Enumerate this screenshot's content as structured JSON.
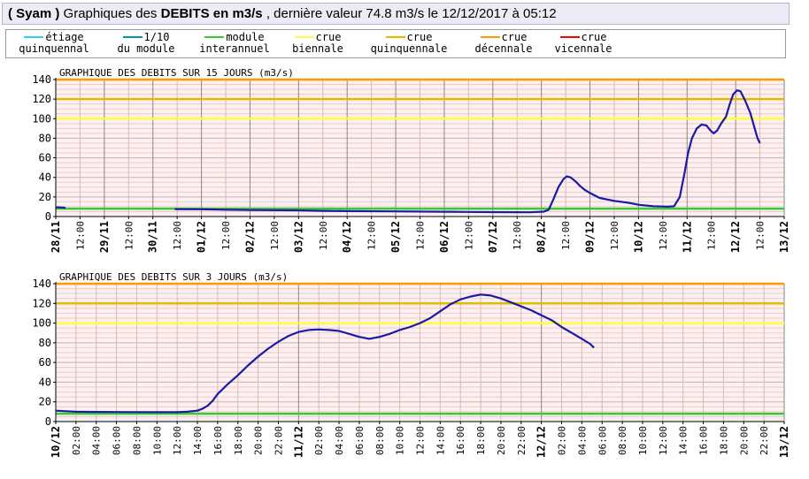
{
  "header": {
    "station": "( Syam )",
    "pre": " Graphiques des ",
    "strong": "DEBITS en m3/s",
    "post": " , dernière valeur 74.8 m3/s le 12/12/2017 à 05:12"
  },
  "legend": [
    {
      "line1": "étiage",
      "line2": "quinquennal",
      "color": "#33ccff"
    },
    {
      "line1": "1/10",
      "line2": "du module",
      "color": "#009999"
    },
    {
      "line1": "module",
      "line2": "interannuel",
      "color": "#33cc33"
    },
    {
      "line1": "crue",
      "line2": "biennale",
      "color": "#ffff33"
    },
    {
      "line1": "crue",
      "line2": "quinquennale",
      "color": "#e6b800"
    },
    {
      "line1": "crue",
      "line2": "décennale",
      "color": "#ff9900"
    },
    {
      "line1": "crue",
      "line2": "vicennale",
      "color": "#ff0000"
    }
  ],
  "chart_data": [
    {
      "type": "line",
      "title": "GRAPHIQUE DES DEBITS SUR 15 JOURS (m3/s)",
      "ylim": [
        0,
        140
      ],
      "yticks": [
        0,
        20,
        40,
        60,
        80,
        100,
        120,
        140
      ],
      "xlim": [
        0,
        15
      ],
      "xticks": [
        {
          "x": 0,
          "label": "28/11",
          "major": true
        },
        {
          "x": 0.5,
          "label": "12:00",
          "major": false
        },
        {
          "x": 1,
          "label": "29/11",
          "major": true
        },
        {
          "x": 1.5,
          "label": "12:00",
          "major": false
        },
        {
          "x": 2,
          "label": "30/11",
          "major": true
        },
        {
          "x": 2.5,
          "label": "12:00",
          "major": false
        },
        {
          "x": 3,
          "label": "01/12",
          "major": true
        },
        {
          "x": 3.5,
          "label": "12:00",
          "major": false
        },
        {
          "x": 4,
          "label": "02/12",
          "major": true
        },
        {
          "x": 4.5,
          "label": "12:00",
          "major": false
        },
        {
          "x": 5,
          "label": "03/12",
          "major": true
        },
        {
          "x": 5.5,
          "label": "12:00",
          "major": false
        },
        {
          "x": 6,
          "label": "04/12",
          "major": true
        },
        {
          "x": 6.5,
          "label": "12:00",
          "major": false
        },
        {
          "x": 7,
          "label": "05/12",
          "major": true
        },
        {
          "x": 7.5,
          "label": "12:00",
          "major": false
        },
        {
          "x": 8,
          "label": "06/12",
          "major": true
        },
        {
          "x": 8.5,
          "label": "12:00",
          "major": false
        },
        {
          "x": 9,
          "label": "07/12",
          "major": true
        },
        {
          "x": 9.5,
          "label": "12:00",
          "major": false
        },
        {
          "x": 10,
          "label": "08/12",
          "major": true
        },
        {
          "x": 10.5,
          "label": "12:00",
          "major": false
        },
        {
          "x": 11,
          "label": "09/12",
          "major": true
        },
        {
          "x": 11.5,
          "label": "12:00",
          "major": false
        },
        {
          "x": 12,
          "label": "10/12",
          "major": true
        },
        {
          "x": 12.5,
          "label": "12:00",
          "major": false
        },
        {
          "x": 13,
          "label": "11/12",
          "major": true
        },
        {
          "x": 13.5,
          "label": "12:00",
          "major": false
        },
        {
          "x": 14,
          "label": "12/12",
          "major": true
        },
        {
          "x": 14.5,
          "label": "12:00",
          "major": false
        },
        {
          "x": 15,
          "label": "13/12",
          "major": true
        }
      ],
      "thresholds": [
        {
          "name": "module interannuel",
          "value": 8,
          "color": "#33cc33"
        },
        {
          "name": "crue biennale",
          "value": 100,
          "color": "#ffff33"
        },
        {
          "name": "crue quinquennale",
          "value": 120,
          "color": "#e6b800"
        },
        {
          "name": "crue décennale",
          "value": 140,
          "color": "#ff9900"
        }
      ],
      "series": [
        {
          "color": "#1a1aa6",
          "segments": [
            [
              [
                0,
                9.5
              ],
              [
                0.15,
                9.2
              ],
              [
                0.2,
                8.8
              ]
            ],
            [
              [
                2.45,
                7.5
              ],
              [
                3,
                7.4
              ],
              [
                3.5,
                7
              ],
              [
                4,
                6.6
              ],
              [
                5,
                6.3
              ],
              [
                5.5,
                5.8
              ],
              [
                6,
                5.5
              ],
              [
                7,
                5.2
              ],
              [
                8,
                4.9
              ],
              [
                8.5,
                4.7
              ],
              [
                9,
                4.5
              ],
              [
                9.5,
                4.4
              ],
              [
                9.75,
                4.3
              ],
              [
                10.05,
                5
              ],
              [
                10.15,
                7
              ],
              [
                10.25,
                18
              ],
              [
                10.35,
                30
              ],
              [
                10.45,
                38
              ],
              [
                10.52,
                41
              ],
              [
                10.6,
                40
              ],
              [
                10.7,
                36
              ],
              [
                10.8,
                31
              ],
              [
                10.9,
                27
              ],
              [
                11,
                24
              ],
              [
                11.2,
                19
              ],
              [
                11.5,
                16
              ],
              [
                11.8,
                14
              ],
              [
                12,
                12
              ],
              [
                12.3,
                10.5
              ],
              [
                12.6,
                10
              ],
              [
                12.73,
                10.5
              ],
              [
                12.85,
                20
              ],
              [
                12.95,
                45
              ],
              [
                13.02,
                65
              ],
              [
                13.1,
                80
              ],
              [
                13.2,
                90
              ],
              [
                13.3,
                94
              ],
              [
                13.4,
                93
              ],
              [
                13.48,
                88
              ],
              [
                13.55,
                85
              ],
              [
                13.62,
                88
              ],
              [
                13.7,
                95
              ],
              [
                13.8,
                102
              ],
              [
                13.88,
                115
              ],
              [
                13.95,
                125
              ],
              [
                14.03,
                129
              ],
              [
                14.1,
                128
              ],
              [
                14.2,
                118
              ],
              [
                14.3,
                106
              ],
              [
                14.38,
                92
              ],
              [
                14.45,
                80
              ],
              [
                14.5,
                75
              ]
            ]
          ]
        }
      ]
    },
    {
      "type": "line",
      "title": "GRAPHIQUE DES DEBITS SUR 3 JOURS (m3/s)",
      "ylim": [
        0,
        140
      ],
      "yticks": [
        0,
        20,
        40,
        60,
        80,
        100,
        120,
        140
      ],
      "xlim": [
        0,
        72
      ],
      "xticks": [
        {
          "x": 0,
          "label": "10/12",
          "major": true
        },
        {
          "x": 2,
          "label": "02:00",
          "major": false
        },
        {
          "x": 4,
          "label": "04:00",
          "major": false
        },
        {
          "x": 6,
          "label": "06:00",
          "major": false
        },
        {
          "x": 8,
          "label": "08:00",
          "major": false
        },
        {
          "x": 10,
          "label": "10:00",
          "major": false
        },
        {
          "x": 12,
          "label": "12:00",
          "major": false
        },
        {
          "x": 14,
          "label": "14:00",
          "major": false
        },
        {
          "x": 16,
          "label": "16:00",
          "major": false
        },
        {
          "x": 18,
          "label": "18:00",
          "major": false
        },
        {
          "x": 20,
          "label": "20:00",
          "major": false
        },
        {
          "x": 22,
          "label": "22:00",
          "major": false
        },
        {
          "x": 24,
          "label": "11/12",
          "major": true
        },
        {
          "x": 26,
          "label": "02:00",
          "major": false
        },
        {
          "x": 28,
          "label": "04:00",
          "major": false
        },
        {
          "x": 30,
          "label": "06:00",
          "major": false
        },
        {
          "x": 32,
          "label": "08:00",
          "major": false
        },
        {
          "x": 34,
          "label": "10:00",
          "major": false
        },
        {
          "x": 36,
          "label": "12:00",
          "major": false
        },
        {
          "x": 38,
          "label": "14:00",
          "major": false
        },
        {
          "x": 40,
          "label": "16:00",
          "major": false
        },
        {
          "x": 42,
          "label": "18:00",
          "major": false
        },
        {
          "x": 44,
          "label": "20:00",
          "major": false
        },
        {
          "x": 46,
          "label": "22:00",
          "major": false
        },
        {
          "x": 48,
          "label": "12/12",
          "major": true
        },
        {
          "x": 50,
          "label": "02:00",
          "major": false
        },
        {
          "x": 52,
          "label": "04:00",
          "major": false
        },
        {
          "x": 54,
          "label": "06:00",
          "major": false
        },
        {
          "x": 56,
          "label": "08:00",
          "major": false
        },
        {
          "x": 58,
          "label": "10:00",
          "major": false
        },
        {
          "x": 60,
          "label": "12:00",
          "major": false
        },
        {
          "x": 62,
          "label": "14:00",
          "major": false
        },
        {
          "x": 64,
          "label": "16:00",
          "major": false
        },
        {
          "x": 66,
          "label": "18:00",
          "major": false
        },
        {
          "x": 68,
          "label": "20:00",
          "major": false
        },
        {
          "x": 70,
          "label": "22:00",
          "major": false
        },
        {
          "x": 72,
          "label": "13/12",
          "major": true
        }
      ],
      "thresholds": [
        {
          "name": "module interannuel",
          "value": 8,
          "color": "#33cc33"
        },
        {
          "name": "crue biennale",
          "value": 100,
          "color": "#ffff33"
        },
        {
          "name": "crue quinquennale",
          "value": 120,
          "color": "#e6b800"
        },
        {
          "name": "crue décennale",
          "value": 140,
          "color": "#ff9900"
        }
      ],
      "series": [
        {
          "color": "#1a1aa6",
          "segments": [
            [
              [
                0,
                11
              ],
              [
                1,
                10.5
              ],
              [
                2,
                10
              ],
              [
                4,
                9.8
              ],
              [
                8,
                9.6
              ],
              [
                12,
                9.5
              ],
              [
                13,
                10
              ],
              [
                14,
                11
              ],
              [
                14.5,
                13
              ],
              [
                15,
                16
              ],
              [
                15.5,
                21
              ],
              [
                16,
                28
              ],
              [
                17,
                38
              ],
              [
                18,
                47
              ],
              [
                19,
                57
              ],
              [
                20,
                66
              ],
              [
                21,
                74
              ],
              [
                22,
                81
              ],
              [
                23,
                87
              ],
              [
                24,
                91
              ],
              [
                25,
                93
              ],
              [
                26,
                93.5
              ],
              [
                27,
                93
              ],
              [
                28,
                92
              ],
              [
                29,
                89
              ],
              [
                30,
                86
              ],
              [
                31,
                84
              ],
              [
                32,
                86
              ],
              [
                33,
                89
              ],
              [
                34,
                93
              ],
              [
                35,
                96
              ],
              [
                36,
                100
              ],
              [
                37,
                105
              ],
              [
                38,
                112
              ],
              [
                39,
                119
              ],
              [
                40,
                124
              ],
              [
                41,
                127
              ],
              [
                42,
                129
              ],
              [
                43,
                128
              ],
              [
                44,
                125
              ],
              [
                45,
                121
              ],
              [
                46,
                117
              ],
              [
                47,
                113
              ],
              [
                48,
                108
              ],
              [
                49,
                103
              ],
              [
                50,
                96
              ],
              [
                51,
                90
              ],
              [
                52,
                84
              ],
              [
                52.8,
                79
              ],
              [
                53.2,
                75
              ]
            ]
          ]
        }
      ]
    }
  ]
}
